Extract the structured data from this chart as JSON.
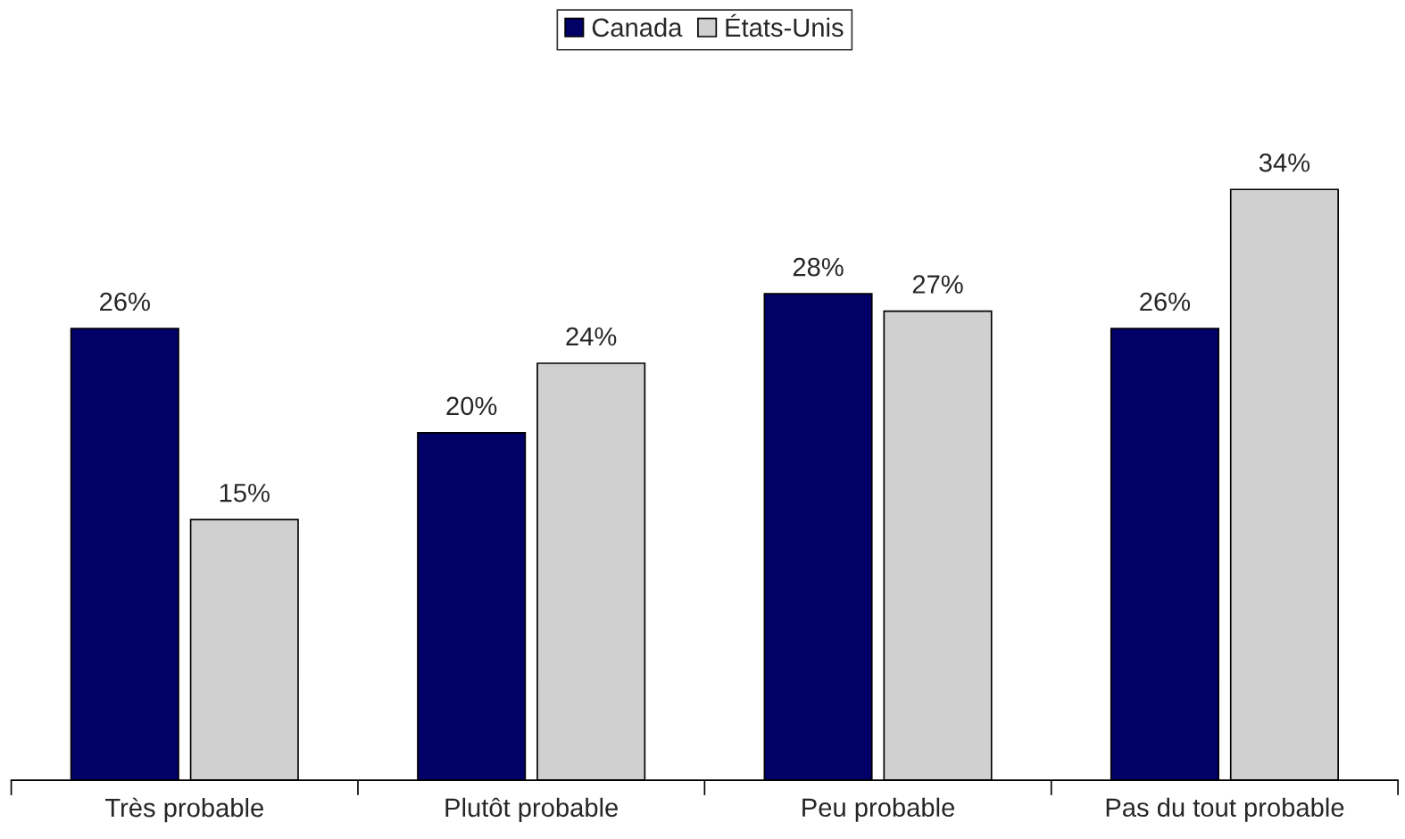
{
  "chart_data": {
    "type": "bar",
    "categories": [
      "Très probable",
      "Plutôt probable",
      "Peu probable",
      "Pas du tout probable"
    ],
    "series": [
      {
        "name": "Canada",
        "color": "#000066",
        "values": [
          26,
          20,
          28,
          26
        ],
        "value_labels": [
          "26%",
          "20%",
          "28%",
          "26%"
        ]
      },
      {
        "name": "États-Unis",
        "color": "#d0d0d0",
        "values": [
          15,
          24,
          27,
          34
        ],
        "value_labels": [
          "15%",
          "24%",
          "27%",
          "34%"
        ]
      }
    ],
    "legend": "top",
    "grid": false
  }
}
